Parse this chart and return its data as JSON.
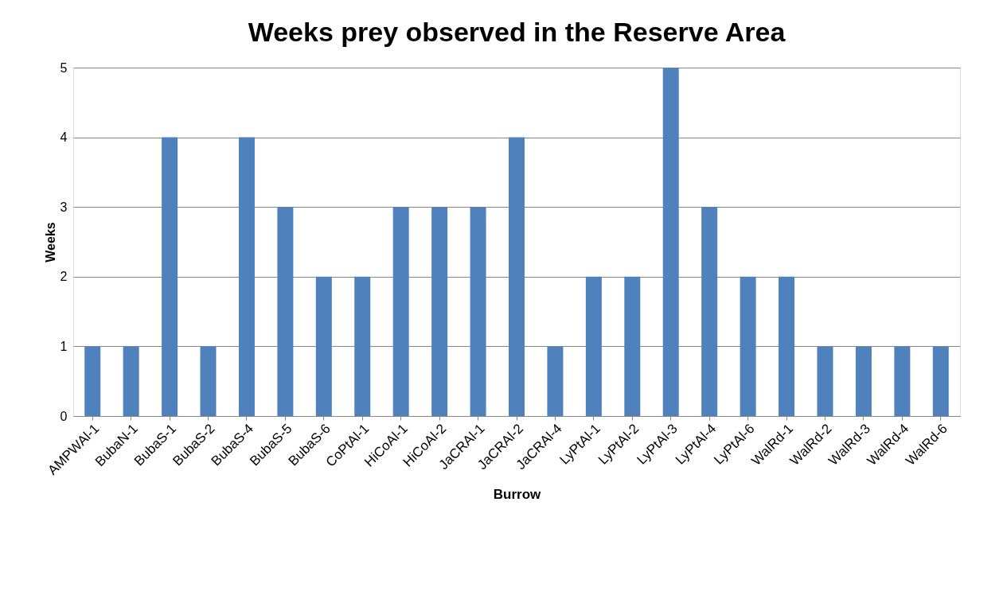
{
  "chart_data": {
    "type": "bar",
    "title": "Weeks prey observed in the Reserve Area",
    "xlabel": "Burrow",
    "ylabel": "Weeks",
    "categories": [
      "AMPWAl-1",
      "BubaN-1",
      "BubaS-1",
      "BubaS-2",
      "BubaS-4",
      "BubaS-5",
      "BubaS-6",
      "CoPtAl-1",
      "HiCoAl-1",
      "HiCoAl-2",
      "JaCRAl-1",
      "JaCRAl-2",
      "JaCRAl-4",
      "LyPtAl-1",
      "LyPtAl-2",
      "LyPtAl-3",
      "LyPtAl-4",
      "LyPtAl-6",
      "WalRd-1",
      "WalRd-2",
      "WalRd-3",
      "WalRd-4",
      "WalRd-6"
    ],
    "values": [
      1,
      1,
      4,
      1,
      4,
      3,
      2,
      2,
      3,
      3,
      3,
      4,
      1,
      2,
      2,
      5,
      3,
      2,
      2,
      1,
      1,
      1,
      1
    ],
    "color": "#4f81bd",
    "ylim": [
      0,
      5
    ],
    "yticks": [
      0,
      1,
      2,
      3,
      4,
      5
    ],
    "grid": "y"
  }
}
